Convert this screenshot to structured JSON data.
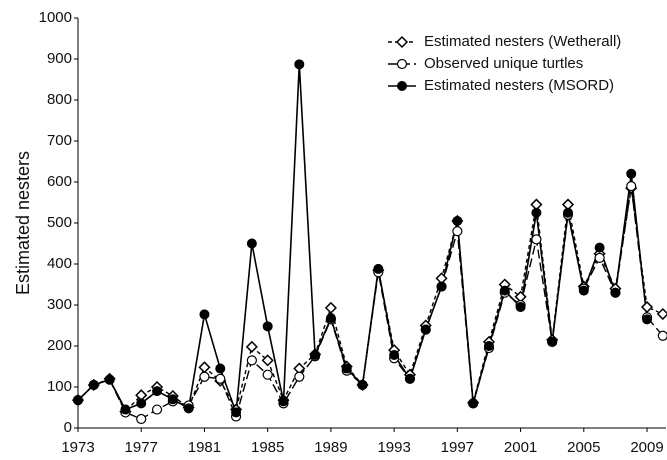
{
  "chart_data": {
    "type": "line",
    "y_label": "Estimated nesters",
    "x": [
      1973,
      1974,
      1975,
      1976,
      1977,
      1978,
      1979,
      1980,
      1981,
      1982,
      1983,
      1984,
      1985,
      1986,
      1987,
      1988,
      1989,
      1990,
      1991,
      1992,
      1993,
      1994,
      1995,
      1996,
      1997,
      1998,
      1999,
      2000,
      2001,
      2002,
      2003,
      2004,
      2005,
      2006,
      2007,
      2008,
      2009,
      2010
    ],
    "series": [
      {
        "name": "Estimated nesters (Wetherall)",
        "color": "#000000",
        "dash": "short",
        "marker": "diamond",
        "values": [
          68,
          105,
          120,
          40,
          80,
          100,
          78,
          50,
          148,
          115,
          45,
          198,
          165,
          68,
          145,
          180,
          293,
          150,
          105,
          385,
          190,
          130,
          250,
          365,
          505,
          62,
          210,
          350,
          320,
          545,
          215,
          545,
          345,
          425,
          340,
          585,
          295,
          278
        ]
      },
      {
        "name": "Observed unique turtles",
        "color": "#000000",
        "dash": "long",
        "marker": "open-circle",
        "values": [
          68,
          105,
          118,
          38,
          22,
          45,
          65,
          55,
          125,
          120,
          28,
          165,
          130,
          60,
          125,
          175,
          265,
          140,
          105,
          380,
          170,
          120,
          240,
          345,
          480,
          60,
          195,
          330,
          300,
          460,
          210,
          520,
          340,
          415,
          330,
          590,
          270,
          225
        ]
      },
      {
        "name": "Estimated nesters (MSORD)",
        "color": "#000000",
        "dash": "solid",
        "marker": "filled-circle",
        "values": [
          68,
          105,
          118,
          45,
          60,
          90,
          70,
          48,
          277,
          145,
          38,
          450,
          248,
          65,
          887,
          178,
          268,
          145,
          105,
          388,
          178,
          120,
          240,
          345,
          505,
          60,
          200,
          335,
          295,
          525,
          210,
          525,
          335,
          440,
          330,
          620,
          265,
          null
        ]
      }
    ],
    "xlim": [
      1973,
      2010.2
    ],
    "xticks": [
      1973,
      1977,
      1981,
      1985,
      1989,
      1993,
      1997,
      2001,
      2005,
      2009
    ],
    "ylim": [
      0,
      1000
    ],
    "yticks": [
      0,
      100,
      200,
      300,
      400,
      500,
      600,
      700,
      800,
      900,
      1000
    ],
    "grid": false,
    "legend": "top-right"
  }
}
